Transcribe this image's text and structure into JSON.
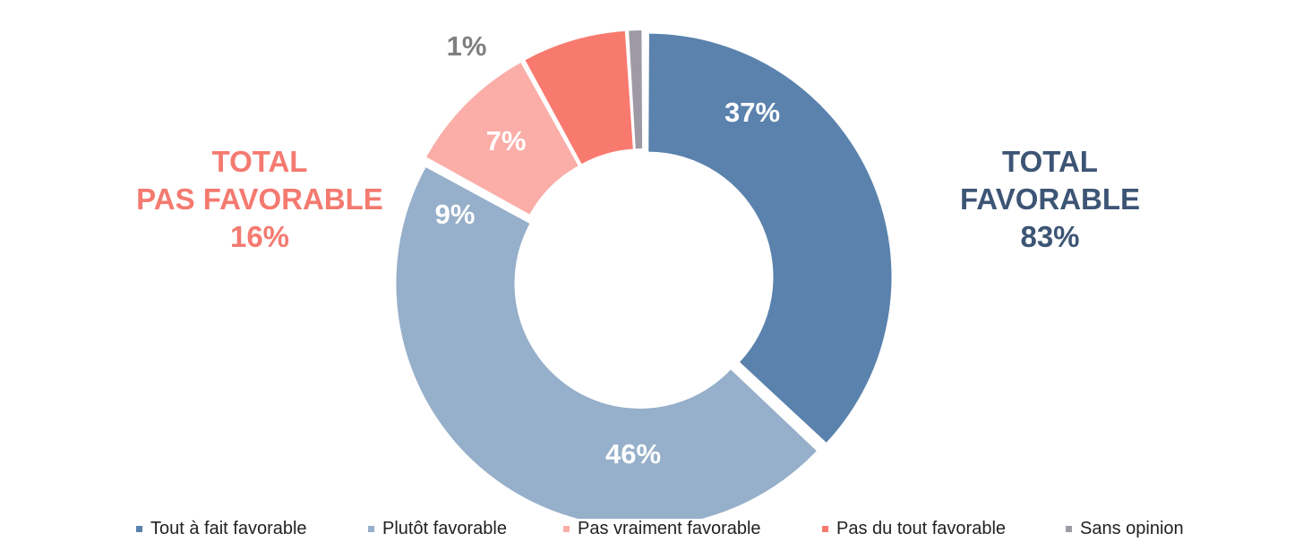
{
  "chart_data": {
    "type": "pie",
    "series": [
      {
        "name": "Tout à fait favorable",
        "value": 37,
        "label": "37%",
        "color": "#5a82ad",
        "label_color": "#ffffff"
      },
      {
        "name": "Plutôt favorable",
        "value": 46,
        "label": "46%",
        "color": "#96afca",
        "label_color": "#ffffff"
      },
      {
        "name": "Pas vraiment favorable",
        "value": 9,
        "label": "9%",
        "color": "#faaea7",
        "label_color": "#ffffff"
      },
      {
        "name": "Pas du tout favorable",
        "value": 7,
        "label": "7%",
        "color": "#f87a6f",
        "label_color": "#ffffff"
      },
      {
        "name": "Sans opinion",
        "value": 1,
        "label": "1%",
        "color": "#9e9aa5",
        "label_color": "#7f7f7f"
      }
    ],
    "legend_position": "bottom",
    "totals": {
      "left": {
        "line1": "TOTAL",
        "line2": "PAS FAVORABLE",
        "value": "16%",
        "color": "#f47a70"
      },
      "right": {
        "line1": "TOTAL",
        "line2": "FAVORABLE",
        "value": "83%",
        "color": "#3d5575"
      }
    }
  }
}
